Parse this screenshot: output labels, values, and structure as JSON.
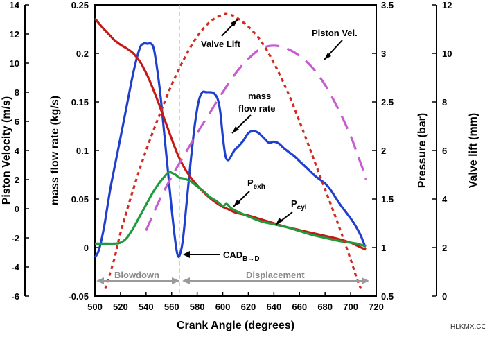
{
  "chart_data": {
    "type": "line",
    "xlabel": "Crank Angle (degrees)",
    "xlim": [
      500,
      720
    ],
    "x_ticks": [
      "500",
      "520",
      "540",
      "560",
      "580",
      "600",
      "620",
      "640",
      "660",
      "680",
      "700",
      "720"
    ],
    "axes": {
      "piston_velocity": {
        "label": "Piston Velocity (m/s)",
        "range": [
          -6,
          14
        ],
        "ticks": [
          "-6",
          "-4",
          "-2",
          "0",
          "2",
          "4",
          "6",
          "8",
          "10",
          "12",
          "14"
        ]
      },
      "mass_flow": {
        "label": "mass flow rate (kg/s)",
        "range": [
          -0.05,
          0.25
        ],
        "ticks": [
          "-0.05",
          "0",
          "0.05",
          "0.1",
          "0.15",
          "0.2",
          "0.25"
        ]
      },
      "pressure": {
        "label": "Pressure (bar)",
        "range": [
          0.5,
          3.5
        ],
        "ticks": [
          "0.5",
          "1",
          "1.5",
          "2",
          "2.5",
          "3",
          "3.5"
        ]
      },
      "valve_lift": {
        "label": "Valve lift (mm)",
        "range": [
          0,
          12
        ],
        "ticks": [
          "0",
          "2",
          "4",
          "6",
          "8",
          "10",
          "12"
        ]
      }
    },
    "series": [
      {
        "name": "mass flow rate",
        "axis": "mass_flow",
        "color": "#1f3fcf",
        "style": "solid",
        "x": [
          500,
          503,
          507,
          512,
          518,
          524,
          530,
          535,
          538,
          541,
          544,
          546,
          548,
          551,
          554,
          557,
          560,
          563,
          565,
          567,
          569,
          572,
          575,
          578,
          581,
          584,
          587,
          590,
          593,
          596,
          598,
          600,
          602,
          604,
          606,
          609,
          612,
          616,
          620,
          624,
          628,
          632,
          636,
          640,
          644,
          648,
          652,
          656,
          660,
          664,
          668,
          672,
          676,
          680,
          684,
          688,
          692,
          696,
          700,
          704,
          708,
          711
        ],
        "y": [
          -0.01,
          -0.003,
          0.02,
          0.06,
          0.1,
          0.14,
          0.18,
          0.205,
          0.21,
          0.21,
          0.21,
          0.205,
          0.19,
          0.16,
          0.12,
          0.08,
          0.04,
          0.005,
          -0.009,
          -0.005,
          0.01,
          0.05,
          0.09,
          0.125,
          0.15,
          0.16,
          0.16,
          0.16,
          0.159,
          0.153,
          0.14,
          0.115,
          0.095,
          0.09,
          0.093,
          0.1,
          0.104,
          0.11,
          0.118,
          0.12,
          0.118,
          0.113,
          0.108,
          0.109,
          0.107,
          0.102,
          0.098,
          0.094,
          0.089,
          0.084,
          0.079,
          0.074,
          0.07,
          0.066,
          0.06,
          0.052,
          0.044,
          0.037,
          0.03,
          0.022,
          0.012,
          0.002
        ]
      },
      {
        "name": "P_exh",
        "axis": "pressure",
        "color": "#c41a16",
        "style": "solid",
        "x": [
          500,
          505,
          510,
          515,
          520,
          525,
          530,
          535,
          540,
          545,
          550,
          555,
          560,
          565,
          570,
          575,
          580,
          585,
          590,
          595,
          600,
          605,
          610,
          620,
          630,
          640,
          650,
          660,
          670,
          680,
          690,
          700,
          705,
          710,
          712
        ],
        "y": [
          3.36,
          3.28,
          3.21,
          3.14,
          3.09,
          3.05,
          3.0,
          2.92,
          2.8,
          2.65,
          2.48,
          2.3,
          2.12,
          1.95,
          1.82,
          1.72,
          1.64,
          1.57,
          1.51,
          1.46,
          1.42,
          1.39,
          1.36,
          1.33,
          1.29,
          1.25,
          1.21,
          1.18,
          1.15,
          1.12,
          1.09,
          1.05,
          1.02,
          0.99,
          0.98
        ]
      },
      {
        "name": "P_cyl",
        "axis": "pressure",
        "color": "#1e9b3c",
        "style": "solid",
        "x": [
          500,
          505,
          510,
          515,
          520,
          525,
          530,
          535,
          540,
          545,
          550,
          555,
          558,
          560,
          563,
          566,
          570,
          575,
          580,
          585,
          590,
          595,
          600,
          603,
          606,
          610,
          620,
          630,
          640,
          650,
          660,
          670,
          680,
          690,
          700,
          705,
          710,
          712
        ],
        "y": [
          1.04,
          1.04,
          1.04,
          1.04,
          1.05,
          1.1,
          1.2,
          1.32,
          1.44,
          1.56,
          1.66,
          1.74,
          1.78,
          1.77,
          1.75,
          1.72,
          1.71,
          1.68,
          1.63,
          1.58,
          1.52,
          1.48,
          1.43,
          1.45,
          1.41,
          1.38,
          1.32,
          1.27,
          1.24,
          1.21,
          1.17,
          1.13,
          1.1,
          1.07,
          1.05,
          1.04,
          1.02,
          1.01
        ]
      },
      {
        "name": "Piston Vel.",
        "axis": "piston_velocity",
        "color": "#c55ccf",
        "style": "dashed",
        "x": [
          540,
          550,
          560,
          570,
          580,
          590,
          600,
          610,
          620,
          630,
          640,
          650,
          660,
          670,
          680,
          690,
          700,
          705,
          710,
          712
        ],
        "y": [
          -1.5,
          0.5,
          2.2,
          3.7,
          5.2,
          6.6,
          8.0,
          9.3,
          10.3,
          11.0,
          11.2,
          11.0,
          10.5,
          9.7,
          8.5,
          6.9,
          5.0,
          3.8,
          2.6,
          2.0
        ]
      },
      {
        "name": "Valve Lift",
        "axis": "valve_lift",
        "color": "#d12a1f",
        "style": "dotted",
        "x": [
          508,
          515,
          520,
          530,
          540,
          550,
          560,
          570,
          580,
          590,
          600,
          605,
          610,
          620,
          630,
          640,
          650,
          660,
          670,
          680,
          690,
          700,
          705,
          708
        ],
        "y": [
          0.3,
          1.5,
          2.6,
          4.4,
          6.0,
          7.4,
          8.7,
          9.8,
          10.7,
          11.3,
          11.6,
          11.6,
          11.5,
          11.1,
          10.5,
          9.6,
          8.5,
          7.2,
          5.8,
          4.4,
          3.0,
          1.5,
          0.7,
          0.3
        ]
      }
    ],
    "markers": {
      "cad_line_x": 566
    },
    "annotations": {
      "valve_lift": "Valve Lift",
      "piston_vel": "Piston Vel.",
      "mass_flow_1": "mass",
      "mass_flow_2": "flow rate",
      "pexh_main": "P",
      "pexh_sub": "exh",
      "pcyl_main": "P",
      "pcyl_sub": "cyl",
      "cad_main": "CAD",
      "cad_sub": "B→D",
      "blowdown": "Blowdown",
      "displacement": "Displacement"
    },
    "grid": false,
    "legend": "none"
  },
  "watermark": "HLKMX.COM"
}
